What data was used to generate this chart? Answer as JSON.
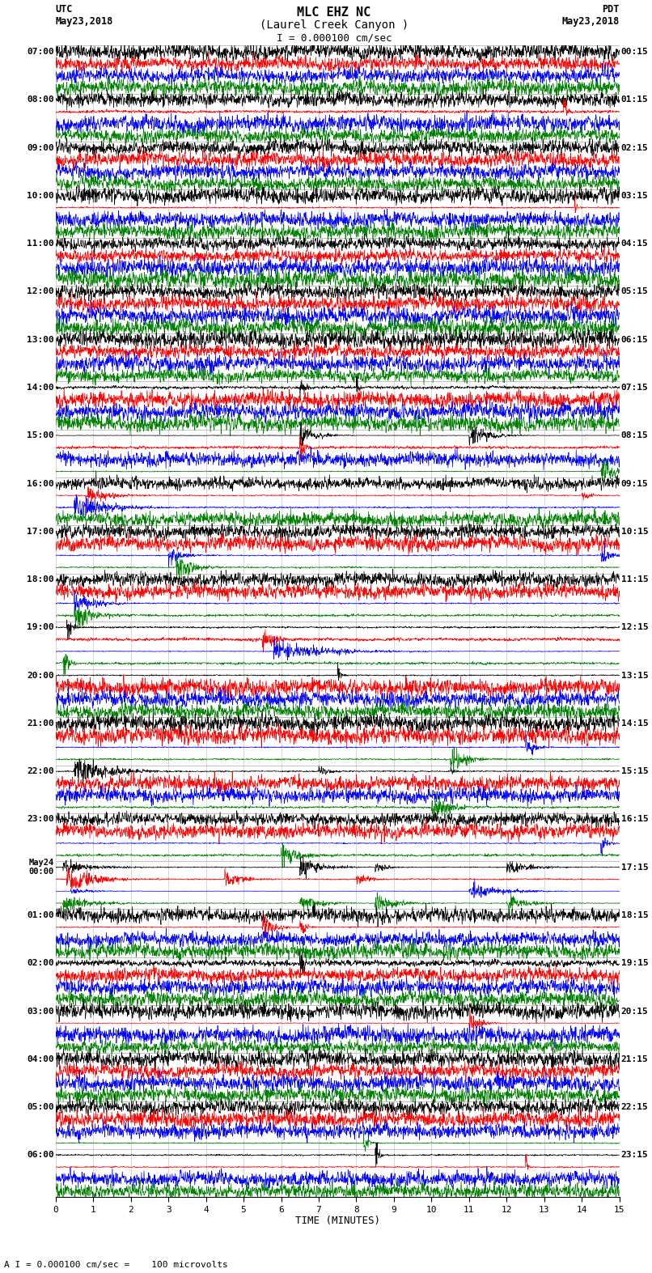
{
  "title_line1": "MLC EHZ NC",
  "title_line2": "(Laurel Creek Canyon )",
  "scale_label": "I = 0.000100 cm/sec",
  "left_header_line1": "UTC",
  "left_header_line2": "May23,2018",
  "right_header_line1": "PDT",
  "right_header_line2": "May23,2018",
  "bottom_label": "TIME (MINUTES)",
  "bottom_note": "A I = 0.000100 cm/sec =    100 microvolts",
  "trace_colors": [
    "black",
    "red",
    "blue",
    "green"
  ],
  "bg_color": "#ffffff",
  "fig_width": 8.5,
  "fig_height": 16.13,
  "xmin": 0,
  "xmax": 15,
  "xticks": [
    0,
    1,
    2,
    3,
    4,
    5,
    6,
    7,
    8,
    9,
    10,
    11,
    12,
    13,
    14,
    15
  ],
  "left_utc_labels": [
    "07:00",
    "08:00",
    "09:00",
    "10:00",
    "11:00",
    "12:00",
    "13:00",
    "14:00",
    "15:00",
    "16:00",
    "17:00",
    "18:00",
    "19:00",
    "20:00",
    "21:00",
    "22:00",
    "23:00",
    "May24\n00:00",
    "01:00",
    "02:00",
    "03:00",
    "04:00",
    "05:00",
    "06:00"
  ],
  "right_pdt_labels": [
    "00:15",
    "01:15",
    "02:15",
    "03:15",
    "04:15",
    "05:15",
    "06:15",
    "07:15",
    "08:15",
    "09:15",
    "10:15",
    "11:15",
    "12:15",
    "13:15",
    "14:15",
    "15:15",
    "16:15",
    "17:15",
    "18:15",
    "19:15",
    "20:15",
    "21:15",
    "22:15",
    "23:15"
  ],
  "num_rows": 24,
  "traces_per_row": 4
}
